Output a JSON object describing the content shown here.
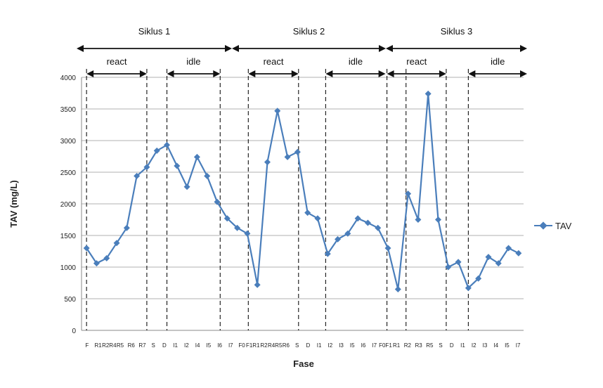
{
  "chart_data": {
    "type": "line",
    "title": "",
    "xlabel": "Fase",
    "ylabel": "TAV (mg/L)",
    "ylim": [
      0,
      4000
    ],
    "yticks": [
      0,
      500,
      1000,
      1500,
      2000,
      2500,
      3000,
      3500,
      4000
    ],
    "grid": "horizontal",
    "legend_position": "right",
    "series_color": "#4a7ebb",
    "categories": [
      "F",
      "R1",
      "R2",
      "R4",
      "R5",
      "R6",
      "R7",
      "S",
      "D",
      "I1",
      "I2",
      "I4",
      "I5",
      "I6",
      "I7",
      "F0",
      "F1",
      "R1",
      "R2",
      "R4",
      "R5",
      "R6",
      "S",
      "D",
      "I1",
      "I2",
      "I3",
      "I5",
      "I6",
      "I7",
      "F0",
      "F1",
      "R1",
      "R2",
      "R3",
      "R5",
      "S",
      "D",
      "I1",
      "I2",
      "I3",
      "I4",
      "I5",
      "I7"
    ],
    "tick_labels": [
      "F",
      "R1",
      "R2R4",
      "R5",
      "R6",
      "R7",
      "S",
      "D",
      "I1",
      "I2",
      "I4",
      "I5",
      "I6",
      "I7",
      "F0",
      "F1R1",
      "R2",
      "R4R5",
      "R6",
      "S",
      "D",
      "I1",
      "I2",
      "I3",
      "I5",
      "I6",
      "I7",
      "F0F1",
      "R1",
      "R2",
      "R3",
      "R5",
      "S",
      "D",
      "I1",
      "I2",
      "I3",
      "I4",
      "I5",
      "I7"
    ],
    "series": [
      {
        "name": "TAV",
        "values": [
          1300,
          1060,
          1140,
          1380,
          1620,
          2440,
          2580,
          2840,
          2930,
          2600,
          2270,
          2740,
          2440,
          2030,
          1770,
          1620,
          1530,
          720,
          2660,
          3470,
          2740,
          2820,
          1860,
          1770,
          1210,
          1440,
          1530,
          1770,
          1700,
          1620,
          1300,
          650,
          2160,
          1750,
          3740,
          1750,
          1000,
          1080,
          670,
          820,
          1160,
          1060,
          1300,
          1220
        ]
      }
    ],
    "cycles": [
      {
        "label": "Siklus 1",
        "react": "react",
        "idle": "idle"
      },
      {
        "label": "Siklus 2",
        "react": "react",
        "idle": "idle"
      },
      {
        "label": "Siklus 3",
        "react": "react",
        "idle": "idle"
      }
    ]
  }
}
